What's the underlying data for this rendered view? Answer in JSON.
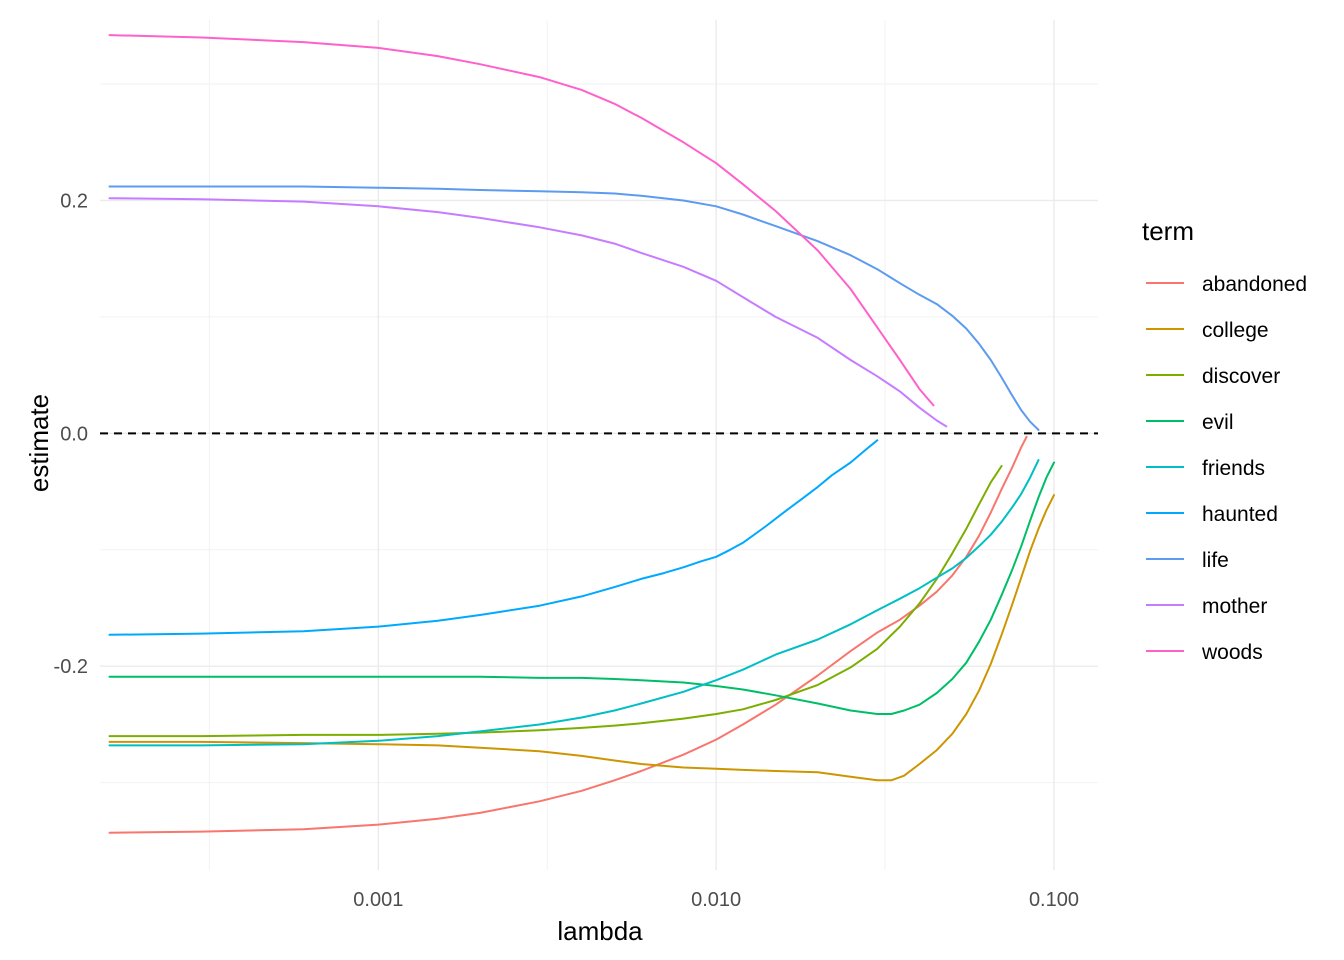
{
  "chart_data": {
    "type": "line",
    "xlabel": "lambda",
    "ylabel": "estimate",
    "x_scale": "log10",
    "xlim": [
      0.00015,
      0.135
    ],
    "ylim": [
      -0.375,
      0.355
    ],
    "x_ticks": [
      {
        "value": 0.001,
        "label": "0.001"
      },
      {
        "value": 0.01,
        "label": "0.010"
      },
      {
        "value": 0.1,
        "label": "0.100"
      }
    ],
    "y_ticks": [
      {
        "value": -0.2,
        "label": "-0.2"
      },
      {
        "value": 0.0,
        "label": "0.0"
      },
      {
        "value": 0.2,
        "label": "0.2"
      }
    ],
    "reference_line": {
      "y": 0,
      "style": "dashed",
      "color": "#000000"
    },
    "grid": true,
    "legend": {
      "title": "term",
      "position": "right"
    },
    "series": [
      {
        "name": "abandoned",
        "color": "#F8766D",
        "x": [
          0.00016,
          0.0003,
          0.0006,
          0.001,
          0.0015,
          0.002,
          0.003,
          0.004,
          0.005,
          0.006,
          0.008,
          0.01,
          0.012,
          0.015,
          0.02,
          0.025,
          0.03,
          0.035,
          0.04,
          0.045,
          0.05,
          0.055,
          0.06,
          0.065,
          0.07,
          0.075,
          0.08,
          0.083
        ],
        "y": [
          -0.343,
          -0.342,
          -0.34,
          -0.336,
          -0.331,
          -0.326,
          -0.316,
          -0.307,
          -0.298,
          -0.29,
          -0.276,
          -0.263,
          -0.25,
          -0.233,
          -0.208,
          -0.187,
          -0.171,
          -0.16,
          -0.148,
          -0.136,
          -0.122,
          -0.106,
          -0.088,
          -0.068,
          -0.048,
          -0.03,
          -0.012,
          -0.003
        ]
      },
      {
        "name": "college",
        "color": "#CD9600",
        "x": [
          0.00016,
          0.0003,
          0.0006,
          0.001,
          0.0015,
          0.002,
          0.003,
          0.004,
          0.005,
          0.006,
          0.008,
          0.01,
          0.012,
          0.015,
          0.02,
          0.025,
          0.03,
          0.033,
          0.036,
          0.04,
          0.045,
          0.05,
          0.055,
          0.06,
          0.065,
          0.07,
          0.075,
          0.08,
          0.085,
          0.09,
          0.095,
          0.1
        ],
        "y": [
          -0.265,
          -0.265,
          -0.266,
          -0.267,
          -0.268,
          -0.27,
          -0.273,
          -0.277,
          -0.281,
          -0.284,
          -0.287,
          -0.288,
          -0.289,
          -0.29,
          -0.291,
          -0.295,
          -0.298,
          -0.298,
          -0.294,
          -0.284,
          -0.272,
          -0.258,
          -0.241,
          -0.221,
          -0.198,
          -0.173,
          -0.148,
          -0.124,
          -0.101,
          -0.082,
          -0.066,
          -0.053
        ]
      },
      {
        "name": "discover",
        "color": "#7CAE00",
        "x": [
          0.00016,
          0.0003,
          0.0006,
          0.001,
          0.0015,
          0.002,
          0.003,
          0.004,
          0.005,
          0.006,
          0.008,
          0.01,
          0.012,
          0.015,
          0.02,
          0.025,
          0.03,
          0.035,
          0.04,
          0.045,
          0.05,
          0.055,
          0.06,
          0.065,
          0.07
        ],
        "y": [
          -0.26,
          -0.26,
          -0.259,
          -0.259,
          -0.258,
          -0.257,
          -0.255,
          -0.253,
          -0.251,
          -0.249,
          -0.245,
          -0.241,
          -0.237,
          -0.229,
          -0.216,
          -0.201,
          -0.185,
          -0.166,
          -0.146,
          -0.125,
          -0.103,
          -0.082,
          -0.061,
          -0.042,
          -0.028
        ]
      },
      {
        "name": "evil",
        "color": "#00BE67",
        "x": [
          0.00016,
          0.0003,
          0.0006,
          0.001,
          0.0015,
          0.002,
          0.003,
          0.004,
          0.005,
          0.006,
          0.008,
          0.01,
          0.012,
          0.015,
          0.02,
          0.025,
          0.03,
          0.033,
          0.036,
          0.04,
          0.045,
          0.05,
          0.055,
          0.06,
          0.065,
          0.07,
          0.075,
          0.08,
          0.085,
          0.09,
          0.095,
          0.1
        ],
        "y": [
          -0.209,
          -0.209,
          -0.209,
          -0.209,
          -0.209,
          -0.209,
          -0.21,
          -0.21,
          -0.211,
          -0.212,
          -0.214,
          -0.217,
          -0.22,
          -0.225,
          -0.232,
          -0.238,
          -0.241,
          -0.241,
          -0.238,
          -0.233,
          -0.223,
          -0.211,
          -0.197,
          -0.179,
          -0.16,
          -0.139,
          -0.118,
          -0.097,
          -0.075,
          -0.055,
          -0.038,
          -0.025
        ]
      },
      {
        "name": "friends",
        "color": "#00BFC4",
        "x": [
          0.00016,
          0.0003,
          0.0006,
          0.001,
          0.0015,
          0.002,
          0.003,
          0.004,
          0.005,
          0.006,
          0.008,
          0.01,
          0.012,
          0.015,
          0.02,
          0.025,
          0.03,
          0.035,
          0.04,
          0.045,
          0.05,
          0.055,
          0.06,
          0.065,
          0.07,
          0.075,
          0.08,
          0.085,
          0.09
        ],
        "y": [
          -0.268,
          -0.268,
          -0.267,
          -0.264,
          -0.26,
          -0.256,
          -0.25,
          -0.244,
          -0.238,
          -0.232,
          -0.222,
          -0.212,
          -0.203,
          -0.19,
          -0.177,
          -0.164,
          -0.152,
          -0.142,
          -0.133,
          -0.124,
          -0.116,
          -0.107,
          -0.097,
          -0.087,
          -0.076,
          -0.064,
          -0.052,
          -0.038,
          -0.023
        ]
      },
      {
        "name": "haunted",
        "color": "#00A9FF",
        "x": [
          0.00016,
          0.0003,
          0.0006,
          0.001,
          0.0015,
          0.002,
          0.003,
          0.004,
          0.005,
          0.006,
          0.007,
          0.008,
          0.009,
          0.01,
          0.011,
          0.012,
          0.014,
          0.016,
          0.018,
          0.02,
          0.022,
          0.025,
          0.028,
          0.03
        ],
        "y": [
          -0.173,
          -0.172,
          -0.17,
          -0.166,
          -0.161,
          -0.156,
          -0.148,
          -0.14,
          -0.132,
          -0.125,
          -0.12,
          -0.115,
          -0.11,
          -0.106,
          -0.1,
          -0.094,
          -0.08,
          -0.067,
          -0.056,
          -0.046,
          -0.036,
          -0.025,
          -0.013,
          -0.006
        ]
      },
      {
        "name": "life",
        "color": "#5C9BF0",
        "x": [
          0.00016,
          0.0003,
          0.0006,
          0.001,
          0.0015,
          0.002,
          0.003,
          0.004,
          0.005,
          0.006,
          0.008,
          0.01,
          0.012,
          0.015,
          0.02,
          0.025,
          0.03,
          0.035,
          0.04,
          0.045,
          0.05,
          0.055,
          0.06,
          0.065,
          0.07,
          0.075,
          0.08,
          0.085,
          0.09
        ],
        "y": [
          0.212,
          0.212,
          0.212,
          0.211,
          0.21,
          0.209,
          0.208,
          0.207,
          0.206,
          0.204,
          0.2,
          0.195,
          0.188,
          0.178,
          0.165,
          0.153,
          0.141,
          0.129,
          0.119,
          0.111,
          0.101,
          0.09,
          0.077,
          0.063,
          0.048,
          0.033,
          0.02,
          0.01,
          0.003
        ]
      },
      {
        "name": "mother",
        "color": "#C77CFF",
        "x": [
          0.00016,
          0.0003,
          0.0006,
          0.001,
          0.0015,
          0.002,
          0.003,
          0.004,
          0.005,
          0.006,
          0.008,
          0.01,
          0.012,
          0.015,
          0.02,
          0.025,
          0.03,
          0.035,
          0.04,
          0.045,
          0.048
        ],
        "y": [
          0.202,
          0.201,
          0.199,
          0.195,
          0.19,
          0.185,
          0.177,
          0.17,
          0.163,
          0.155,
          0.143,
          0.131,
          0.117,
          0.1,
          0.082,
          0.063,
          0.049,
          0.036,
          0.022,
          0.011,
          0.006
        ]
      },
      {
        "name": "woods",
        "color": "#FF61CC",
        "x": [
          0.00016,
          0.0003,
          0.0006,
          0.001,
          0.0015,
          0.002,
          0.003,
          0.004,
          0.005,
          0.006,
          0.008,
          0.01,
          0.012,
          0.015,
          0.02,
          0.025,
          0.03,
          0.035,
          0.04,
          0.044
        ],
        "y": [
          0.342,
          0.34,
          0.336,
          0.331,
          0.324,
          0.317,
          0.306,
          0.295,
          0.283,
          0.271,
          0.25,
          0.232,
          0.214,
          0.191,
          0.157,
          0.124,
          0.091,
          0.063,
          0.038,
          0.024
        ]
      }
    ]
  }
}
